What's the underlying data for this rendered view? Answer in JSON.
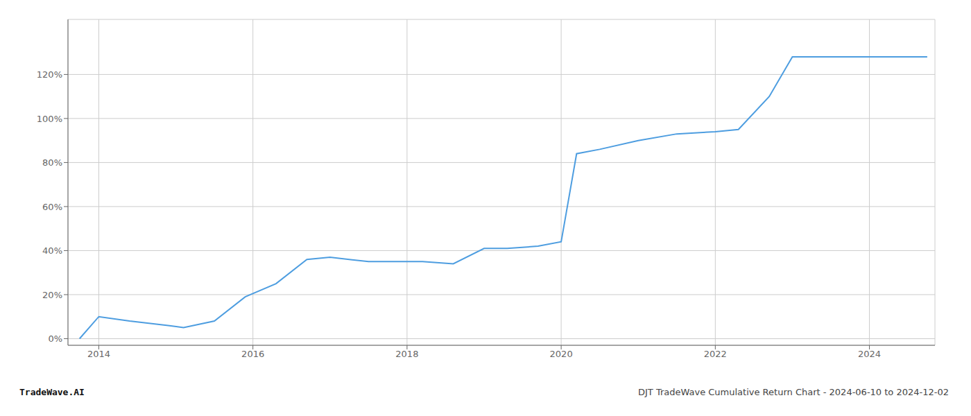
{
  "chart_data": {
    "type": "line",
    "x": [
      2013.75,
      2014.0,
      2014.4,
      2014.9,
      2015.1,
      2015.5,
      2015.9,
      2016.3,
      2016.7,
      2017.0,
      2017.5,
      2017.9,
      2018.2,
      2018.6,
      2019.0,
      2019.3,
      2019.7,
      2020.0,
      2020.2,
      2020.5,
      2021.0,
      2021.5,
      2022.0,
      2022.3,
      2022.7,
      2023.0,
      2023.3,
      2023.7,
      2024.0,
      2024.4,
      2024.75
    ],
    "values": [
      0,
      10,
      8,
      6,
      5,
      8,
      19,
      25,
      36,
      37,
      35,
      35,
      35,
      34,
      41,
      41,
      42,
      44,
      84,
      86,
      90,
      93,
      94,
      95,
      110,
      128,
      128,
      128,
      128,
      128,
      128
    ],
    "color": "#4d9de0",
    "xlim": [
      2013.6,
      2024.85
    ],
    "ylim": [
      -3,
      145
    ],
    "xticks": [
      2014,
      2016,
      2018,
      2020,
      2022,
      2024
    ],
    "yticks": [
      {
        "value": 0,
        "label": "0%"
      },
      {
        "value": 20,
        "label": "20%"
      },
      {
        "value": 40,
        "label": "40%"
      },
      {
        "value": 60,
        "label": "60%"
      },
      {
        "value": 80,
        "label": "80%"
      },
      {
        "value": 100,
        "label": "100%"
      },
      {
        "value": 120,
        "label": "120%"
      }
    ],
    "grid": true,
    "annotations": [
      "TradeWave.AI",
      "DJT TradeWave Cumulative Return Chart - 2024-06-10 to 2024-12-02"
    ]
  }
}
